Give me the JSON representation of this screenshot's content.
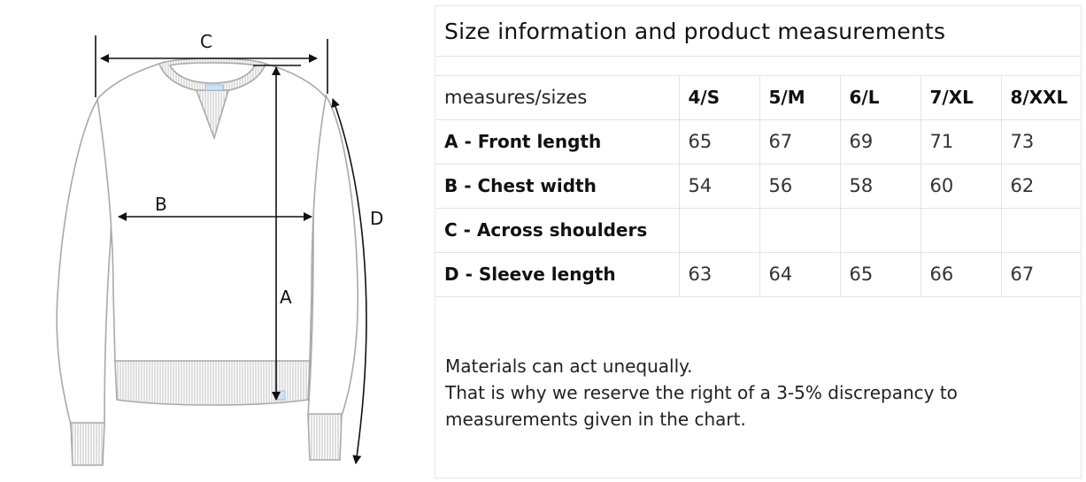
{
  "diagram": {
    "labels": {
      "a": "A",
      "b": "B",
      "c": "C",
      "d": "D"
    }
  },
  "panel": {
    "title": "Size information and product measurements",
    "table": {
      "header": [
        "measures/sizes",
        "4/S",
        "5/M",
        "6/L",
        "7/XL",
        "8/XXL"
      ],
      "rows": [
        {
          "label": "A - Front length",
          "values": [
            "65",
            "67",
            "69",
            "71",
            "73"
          ]
        },
        {
          "label": "B - Chest width",
          "values": [
            "54",
            "56",
            "58",
            "60",
            "62"
          ]
        },
        {
          "label": "C - Across shoulders",
          "values": [
            "",
            "",
            "",
            "",
            ""
          ]
        },
        {
          "label": "D - Sleeve length",
          "values": [
            "63",
            "64",
            "65",
            "66",
            "67"
          ]
        }
      ]
    },
    "note": [
      "Materials can act unequally.",
      "That is why we reserve the right of a 3-5% discrepancy to",
      "measurements given in the chart."
    ]
  }
}
